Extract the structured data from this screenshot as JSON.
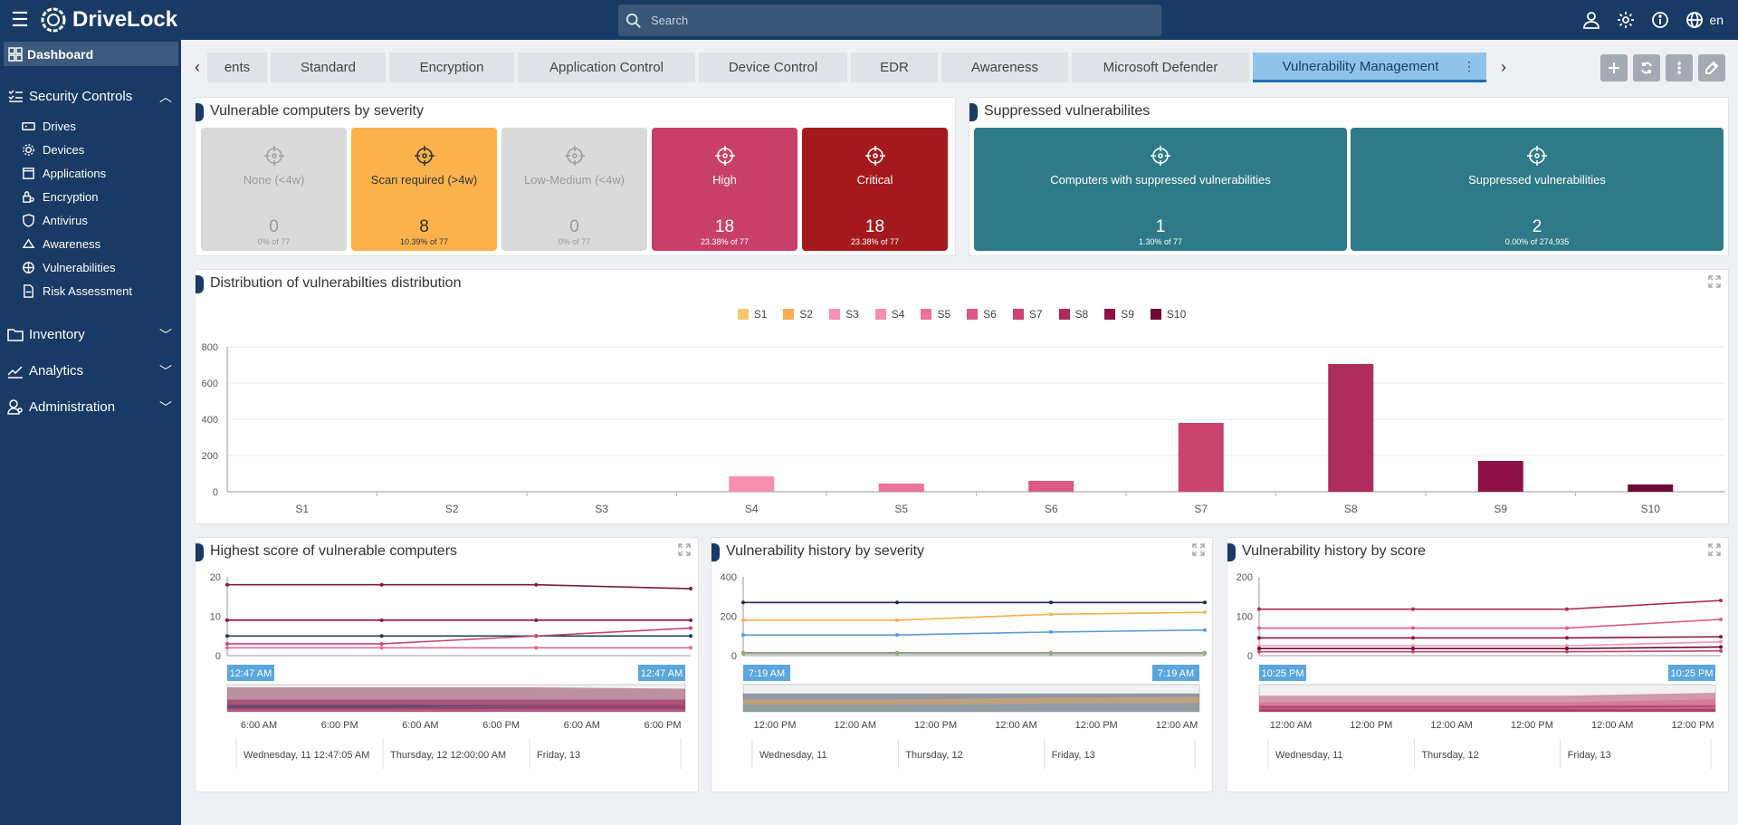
{
  "app": {
    "name": "DriveLock"
  },
  "search": {
    "placeholder": "Search"
  },
  "header": {
    "lang": "en"
  },
  "sidebar": {
    "dashboard": "Dashboard",
    "security_controls": "Security Controls",
    "items": [
      {
        "label": "Drives",
        "icon": "drive-icon"
      },
      {
        "label": "Devices",
        "icon": "gear-device-icon"
      },
      {
        "label": "Applications",
        "icon": "applications-icon"
      },
      {
        "label": "Encryption",
        "icon": "encryption-icon"
      },
      {
        "label": "Antivirus",
        "icon": "shield-icon"
      },
      {
        "label": "Awareness",
        "icon": "awareness-icon"
      },
      {
        "label": "Vulnerabilities",
        "icon": "vulnerabilities-icon"
      },
      {
        "label": "Risk Assessment",
        "icon": "risk-icon"
      }
    ],
    "inventory": "Inventory",
    "analytics": "Analytics",
    "administration": "Administration"
  },
  "tabs": [
    "ents",
    "Standard",
    "Encryption",
    "Application Control",
    "Device Control",
    "EDR",
    "Awareness",
    "Microsoft Defender",
    "Vulnerability Management"
  ],
  "panels": {
    "severity": {
      "title": "Vulnerable computers by severity",
      "tiles": [
        {
          "label": "None (<4w)",
          "value": "0",
          "sub": "0% of 77",
          "bg": "#dadada",
          "fg": "#9a9a9a"
        },
        {
          "label": "Scan required (>4w)",
          "value": "8",
          "sub": "10.39% of 77",
          "bg": "#fbb24c",
          "fg": "#333333"
        },
        {
          "label": "Low-Medium (<4w)",
          "value": "0",
          "sub": "0% of 77",
          "bg": "#dadada",
          "fg": "#9a9a9a"
        },
        {
          "label": "High",
          "value": "18",
          "sub": "23.38% of 77",
          "bg": "#c8406a",
          "fg": "#ffffff"
        },
        {
          "label": "Critical",
          "value": "18",
          "sub": "23.38% of 77",
          "bg": "#a41a1c",
          "fg": "#ffffff"
        }
      ]
    },
    "suppressed": {
      "title": "Suppressed vulnerabilites",
      "tiles": [
        {
          "label": "Computers with suppressed vulnerabilities",
          "value": "1",
          "sub": "1.30% of 77",
          "bg": "#2e7a88",
          "fg": "#ffffff"
        },
        {
          "label": "Suppressed vulnerabilities",
          "value": "2",
          "sub": "0.00% of 274,935",
          "bg": "#2e7a88",
          "fg": "#ffffff"
        }
      ]
    },
    "distribution": {
      "title": "Distribution of vulnerabilties distribution"
    },
    "highest": {
      "title": "Highest score of vulnerable computers"
    },
    "history_severity": {
      "title": "Vulnerability history by severity"
    },
    "history_score": {
      "title": "Vulnerability history by score"
    }
  },
  "chart_data": [
    {
      "type": "bar",
      "title": "Distribution of vulnerabilties distribution",
      "categories": [
        "S1",
        "S2",
        "S3",
        "S4",
        "S5",
        "S6",
        "S7",
        "S8",
        "S9",
        "S10"
      ],
      "values": [
        0,
        0,
        0,
        85,
        45,
        60,
        380,
        705,
        170,
        40
      ],
      "colors": [
        "#f9c76c",
        "#f8ae4e",
        "#f593b6",
        "#f58fb0",
        "#ea729b",
        "#dc5b85",
        "#c94570",
        "#ad2c5b",
        "#8c1246",
        "#6b0a35"
      ],
      "ylim": [
        0,
        800
      ],
      "yticks": [
        0,
        200,
        400,
        600,
        800
      ],
      "legend": "top"
    },
    {
      "type": "line",
      "title": "Highest score of vulnerable computers",
      "ylim": [
        0,
        20
      ],
      "yticks": [
        0,
        10,
        20
      ],
      "xticks": [
        "6:00 AM",
        "6:00 PM",
        "6:00 AM",
        "6:00 PM",
        "6:00 AM",
        "6:00 PM"
      ],
      "range_labels": [
        "12:47 AM",
        "12:47 AM"
      ],
      "day_labels": [
        "Wednesday, 11 12:47:05 AM",
        "Thursday, 12 12:00:00 AM",
        "Friday, 13"
      ],
      "series": [
        {
          "values": [
            18,
            18,
            18,
            17
          ],
          "color": "#7a1d3d"
        },
        {
          "values": [
            9,
            9,
            9,
            9
          ],
          "color": "#8c1246"
        },
        {
          "values": [
            5,
            5,
            5,
            5
          ],
          "color": "#183a64"
        },
        {
          "values": [
            3,
            3,
            5,
            7
          ],
          "color": "#c94570"
        },
        {
          "values": [
            2,
            2,
            2,
            2
          ],
          "color": "#e06a95"
        }
      ]
    },
    {
      "type": "line",
      "title": "Vulnerability history by severity",
      "ylim": [
        0,
        400
      ],
      "yticks": [
        0,
        200,
        400
      ],
      "xticks": [
        "12:00 PM",
        "12:00 AM",
        "12:00 PM",
        "12:00 AM",
        "12:00 PM",
        "12:00 AM"
      ],
      "range_labels": [
        "7:19 AM",
        "7:19 AM"
      ],
      "day_labels": [
        "Wednesday, 11",
        "Thursday, 12",
        "Friday, 13"
      ],
      "series": [
        {
          "values": [
            270,
            270,
            270,
            270
          ],
          "color": "#1a2a4a"
        },
        {
          "values": [
            180,
            180,
            210,
            220
          ],
          "color": "#f8ae4e"
        },
        {
          "values": [
            105,
            105,
            120,
            130
          ],
          "color": "#5b9bd5"
        },
        {
          "values": [
            15,
            15,
            15,
            15
          ],
          "color": "#9b7fd1"
        },
        {
          "values": [
            10,
            10,
            10,
            10
          ],
          "color": "#8ab56a"
        }
      ]
    },
    {
      "type": "line",
      "title": "Vulnerability history by score",
      "ylim": [
        0,
        200
      ],
      "yticks": [
        0,
        100,
        200
      ],
      "xticks": [
        "12:00 AM",
        "12:00 PM",
        "12:00 AM",
        "12:00 PM",
        "12:00 AM",
        "12:00 PM"
      ],
      "range_labels": [
        "10:25 PM",
        "10:25 PM"
      ],
      "day_labels": [
        "Wednesday, 11",
        "Thursday, 12",
        "Friday, 13"
      ],
      "series": [
        {
          "values": [
            118,
            118,
            118,
            140
          ],
          "color": "#ad2c5b"
        },
        {
          "values": [
            70,
            70,
            70,
            92
          ],
          "color": "#dc5b85"
        },
        {
          "values": [
            45,
            45,
            45,
            48
          ],
          "color": "#8c1246"
        },
        {
          "values": [
            25,
            25,
            25,
            35
          ],
          "color": "#f593b6"
        },
        {
          "values": [
            18,
            18,
            18,
            22
          ],
          "color": "#6b0a35"
        },
        {
          "values": [
            10,
            10,
            10,
            12
          ],
          "color": "#c94570"
        }
      ]
    }
  ]
}
